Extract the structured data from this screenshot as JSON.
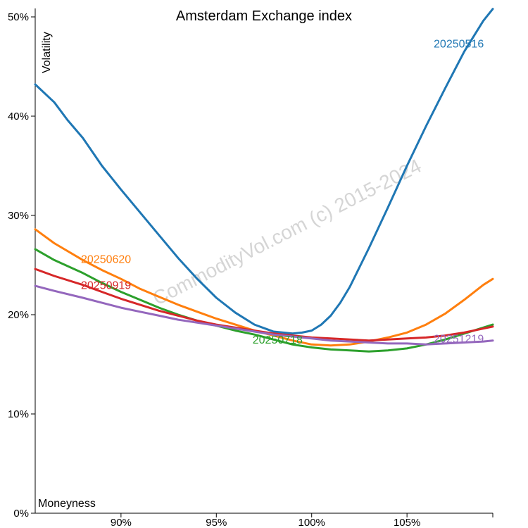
{
  "chart_data": {
    "type": "line",
    "title": "Amsterdam Exchange index",
    "xlabel": "Moneyness",
    "ylabel": "Volatility",
    "watermark": "CommodityVol.com (c) 2015-2024",
    "xlim": [
      85.5,
      109.5
    ],
    "ylim": [
      0,
      50
    ],
    "xticks": [
      {
        "value": 90,
        "label": "90%"
      },
      {
        "value": 95,
        "label": "95%"
      },
      {
        "value": 100,
        "label": "100%"
      },
      {
        "value": 105,
        "label": "105%"
      }
    ],
    "yticks": [
      {
        "value": 0,
        "label": "0%"
      },
      {
        "value": 10,
        "label": "10%"
      },
      {
        "value": 20,
        "label": "20%"
      },
      {
        "value": 30,
        "label": "30%"
      },
      {
        "value": 40,
        "label": "40%"
      },
      {
        "value": 50,
        "label": "50%"
      }
    ],
    "grid": false,
    "series": [
      {
        "name": "20250516",
        "color": "#1f77b4",
        "label_at": [
          106.4,
          46.9
        ],
        "points": [
          [
            85.5,
            43.2
          ],
          [
            86.5,
            41.4
          ],
          [
            87.2,
            39.6
          ],
          [
            88.0,
            37.8
          ],
          [
            89.0,
            35.0
          ],
          [
            90.0,
            32.6
          ],
          [
            91.0,
            30.3
          ],
          [
            92.0,
            28.0
          ],
          [
            93.0,
            25.7
          ],
          [
            94.0,
            23.6
          ],
          [
            95.0,
            21.7
          ],
          [
            96.0,
            20.2
          ],
          [
            97.0,
            19.0
          ],
          [
            98.0,
            18.3
          ],
          [
            99.0,
            18.1
          ],
          [
            99.5,
            18.2
          ],
          [
            100.0,
            18.4
          ],
          [
            100.5,
            19.0
          ],
          [
            101.0,
            19.9
          ],
          [
            101.5,
            21.2
          ],
          [
            102.0,
            22.8
          ],
          [
            103.0,
            26.7
          ],
          [
            104.0,
            30.8
          ],
          [
            105.0,
            35.0
          ],
          [
            106.0,
            39.0
          ],
          [
            107.0,
            42.8
          ],
          [
            108.0,
            46.5
          ],
          [
            109.0,
            49.6
          ],
          [
            109.5,
            50.8
          ]
        ]
      },
      {
        "name": "20250620",
        "color": "#ff7f0e",
        "label_at": [
          87.9,
          25.2
        ],
        "points": [
          [
            85.5,
            28.6
          ],
          [
            86.5,
            27.2
          ],
          [
            88.0,
            25.5
          ],
          [
            89.0,
            24.5
          ],
          [
            90.0,
            23.6
          ],
          [
            91.0,
            22.6
          ],
          [
            92.0,
            21.8
          ],
          [
            93.0,
            21.0
          ],
          [
            94.0,
            20.3
          ],
          [
            95.0,
            19.6
          ],
          [
            96.0,
            19.0
          ],
          [
            97.0,
            18.4
          ],
          [
            98.0,
            17.9
          ],
          [
            99.0,
            17.4
          ],
          [
            100.0,
            17.0
          ],
          [
            101.0,
            16.9
          ],
          [
            102.0,
            17.0
          ],
          [
            103.0,
            17.3
          ],
          [
            104.0,
            17.7
          ],
          [
            105.0,
            18.2
          ],
          [
            106.0,
            19.0
          ],
          [
            107.0,
            20.1
          ],
          [
            108.0,
            21.5
          ],
          [
            109.0,
            23.0
          ],
          [
            109.5,
            23.6
          ]
        ]
      },
      {
        "name": "20250718",
        "color": "#2ca02c",
        "label_at": [
          96.9,
          17.1
        ],
        "points": [
          [
            85.5,
            26.6
          ],
          [
            86.5,
            25.5
          ],
          [
            88.0,
            24.2
          ],
          [
            89.0,
            23.2
          ],
          [
            90.0,
            22.3
          ],
          [
            91.0,
            21.5
          ],
          [
            92.0,
            20.7
          ],
          [
            93.0,
            20.0
          ],
          [
            94.0,
            19.4
          ],
          [
            95.0,
            18.9
          ],
          [
            96.0,
            18.4
          ],
          [
            97.0,
            18.0
          ],
          [
            98.0,
            17.5
          ],
          [
            99.0,
            17.0
          ],
          [
            100.0,
            16.7
          ],
          [
            101.0,
            16.5
          ],
          [
            102.0,
            16.4
          ],
          [
            103.0,
            16.3
          ],
          [
            104.0,
            16.4
          ],
          [
            105.0,
            16.6
          ],
          [
            106.0,
            17.0
          ],
          [
            107.0,
            17.5
          ],
          [
            108.0,
            18.1
          ],
          [
            109.0,
            18.7
          ],
          [
            109.5,
            19.0
          ]
        ]
      },
      {
        "name": "20250919",
        "color": "#d62728",
        "label_at": [
          87.9,
          22.6
        ],
        "points": [
          [
            85.5,
            24.6
          ],
          [
            86.5,
            23.9
          ],
          [
            88.0,
            23.0
          ],
          [
            89.0,
            22.3
          ],
          [
            90.0,
            21.6
          ],
          [
            91.0,
            21.0
          ],
          [
            92.0,
            20.4
          ],
          [
            93.0,
            19.9
          ],
          [
            94.0,
            19.4
          ],
          [
            95.0,
            19.0
          ],
          [
            96.0,
            18.7
          ],
          [
            97.0,
            18.4
          ],
          [
            98.0,
            18.1
          ],
          [
            99.0,
            17.9
          ],
          [
            100.0,
            17.7
          ],
          [
            101.0,
            17.6
          ],
          [
            102.0,
            17.5
          ],
          [
            103.0,
            17.4
          ],
          [
            104.0,
            17.5
          ],
          [
            105.0,
            17.6
          ],
          [
            106.0,
            17.7
          ],
          [
            107.0,
            17.9
          ],
          [
            108.0,
            18.2
          ],
          [
            109.0,
            18.6
          ],
          [
            109.5,
            18.8
          ]
        ]
      },
      {
        "name": "20251219",
        "color": "#9467bd",
        "label_at": [
          106.4,
          17.2
        ],
        "points": [
          [
            85.5,
            22.9
          ],
          [
            86.5,
            22.4
          ],
          [
            88.0,
            21.7
          ],
          [
            89.0,
            21.2
          ],
          [
            90.0,
            20.7
          ],
          [
            91.0,
            20.3
          ],
          [
            92.0,
            19.9
          ],
          [
            93.0,
            19.5
          ],
          [
            94.0,
            19.2
          ],
          [
            95.0,
            18.9
          ],
          [
            96.0,
            18.6
          ],
          [
            97.0,
            18.3
          ],
          [
            98.0,
            18.0
          ],
          [
            99.0,
            17.8
          ],
          [
            100.0,
            17.6
          ],
          [
            101.0,
            17.4
          ],
          [
            102.0,
            17.3
          ],
          [
            103.0,
            17.2
          ],
          [
            104.0,
            17.1
          ],
          [
            105.0,
            17.1
          ],
          [
            106.0,
            17.0
          ],
          [
            107.0,
            17.1
          ],
          [
            108.0,
            17.2
          ],
          [
            109.0,
            17.3
          ],
          [
            109.5,
            17.4
          ]
        ]
      }
    ]
  }
}
